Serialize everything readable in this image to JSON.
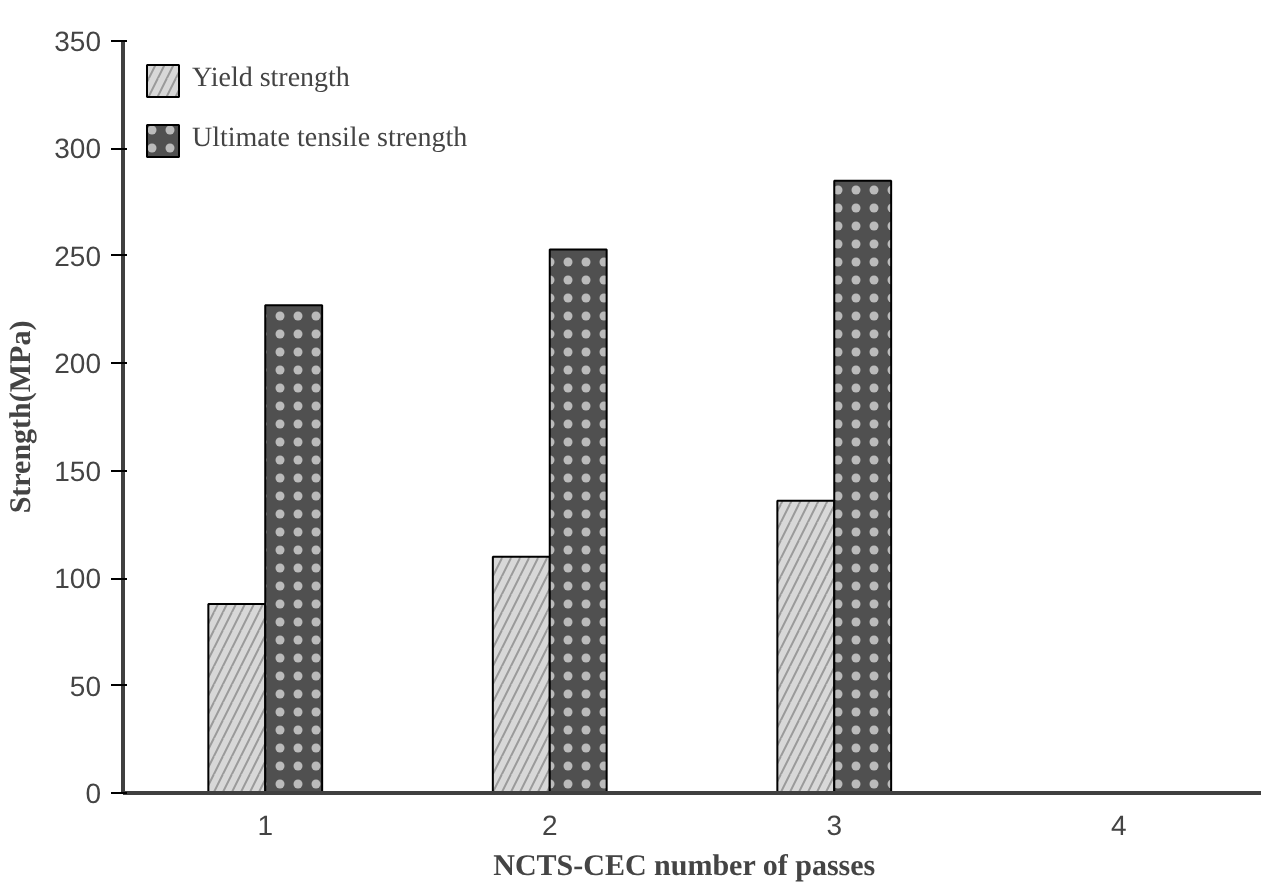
{
  "chart_data": {
    "type": "bar",
    "xlabel": "NCTS-CEC  number  of passes",
    "ylabel": "Strength(MPa)",
    "categories": [
      "1",
      "2",
      "3",
      "4"
    ],
    "series": [
      {
        "name": "Yield strength",
        "color": "#d8d8d8",
        "values": [
          88,
          110,
          136,
          null
        ]
      },
      {
        "name": "Ultimate tensile strength",
        "color": "#505050",
        "values": [
          227,
          253,
          285,
          null
        ]
      }
    ],
    "ylim": [
      0,
      350
    ],
    "yticks": [
      0,
      50,
      100,
      150,
      200,
      250,
      300,
      350
    ],
    "grid": false,
    "legend": "top left"
  }
}
